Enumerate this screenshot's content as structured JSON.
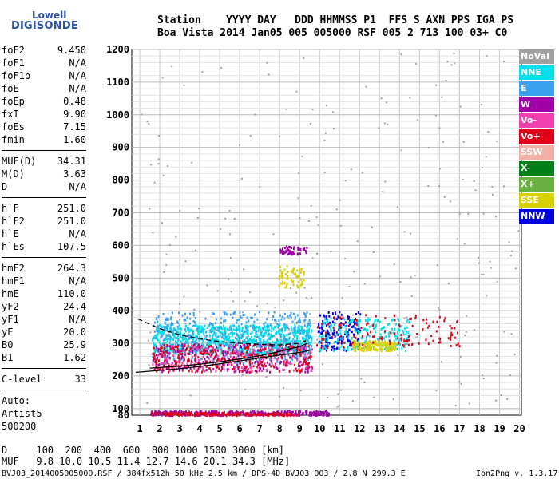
{
  "logo": {
    "top": "Lowell",
    "bottom": "DIGISONDE"
  },
  "header": {
    "line1": "Station    YYYY DAY   DDD HHMMSS P1  FFS S AXN PPS IGA PS",
    "line2": "Boa Vista 2014 Jan05 005 005000 RSF 005 2 713 100 03+ C0"
  },
  "params": {
    "group1": [
      {
        "name": "foF2",
        "value": "9.450"
      },
      {
        "name": "foF1",
        "value": "N/A"
      },
      {
        "name": "foF1p",
        "value": "N/A"
      },
      {
        "name": "foE",
        "value": "N/A"
      },
      {
        "name": "foEp",
        "value": "0.48"
      },
      {
        "name": "fxI",
        "value": "9.90"
      },
      {
        "name": "foEs",
        "value": "7.15"
      },
      {
        "name": "fmin",
        "value": "1.60"
      }
    ],
    "group2": [
      {
        "name": "MUF(D)",
        "value": "34.31"
      },
      {
        "name": "M(D)",
        "value": "3.63"
      },
      {
        "name": "D",
        "value": "N/A"
      }
    ],
    "group3": [
      {
        "name": "h`F",
        "value": "251.0"
      },
      {
        "name": "h`F2",
        "value": "251.0"
      },
      {
        "name": "h`E",
        "value": "N/A"
      },
      {
        "name": "h`Es",
        "value": "107.5"
      }
    ],
    "group4": [
      {
        "name": "hmF2",
        "value": "264.3"
      },
      {
        "name": "hmF1",
        "value": "N/A"
      },
      {
        "name": "hmE",
        "value": "110.0"
      },
      {
        "name": "yF2",
        "value": "24.4"
      },
      {
        "name": "yF1",
        "value": "N/A"
      },
      {
        "name": "yE",
        "value": "20.0"
      },
      {
        "name": "B0",
        "value": "25.9"
      },
      {
        "name": "B1",
        "value": "1.62"
      }
    ],
    "group5": [
      {
        "name": "C-level",
        "value": "33"
      }
    ],
    "auto": [
      "Auto:",
      "Artist5",
      "500200"
    ]
  },
  "legend": [
    {
      "label": "NoVal",
      "color": "#a0a0a0"
    },
    {
      "label": "NNE",
      "color": "#00e0e8"
    },
    {
      "label": "E",
      "color": "#3aa0f0"
    },
    {
      "label": "W",
      "color": "#a000a8"
    },
    {
      "label": "Vo-",
      "color": "#f040b0"
    },
    {
      "label": "Vo+",
      "color": "#e00018"
    },
    {
      "label": "SSW",
      "color": "#f0b0a8"
    },
    {
      "label": "X-",
      "color": "#008018"
    },
    {
      "label": "X+",
      "color": "#68b040"
    },
    {
      "label": "SSE",
      "color": "#d8d000"
    },
    {
      "label": "NNW",
      "color": "#0000e0"
    }
  ],
  "footer": {
    "d_line": "D     100  200  400  600  800 1000 1500 3000 [km]",
    "muf_line": "MUF   9.8 10.0 10.5 11.4 12.7 14.6 20.1 34.3 [MHz]",
    "file_line": "BVJ03_2014005005000.RSF / 384fx512h 50 kHz 2.5 km / DPS-4D BVJ03 003 / 2.8 N 299.3 E",
    "version": "Ion2Png v. 1.3.17"
  },
  "chart_data": {
    "type": "scatter",
    "x_ticks": [
      1,
      2,
      3,
      4,
      5,
      6,
      7,
      8,
      9,
      10,
      11,
      12,
      13,
      14,
      15,
      16,
      17,
      18,
      19,
      20
    ],
    "y_ticks": [
      80,
      100,
      200,
      300,
      400,
      500,
      600,
      700,
      800,
      900,
      1000,
      1100,
      1200
    ],
    "xlim": [
      0.6,
      20.1
    ],
    "ylim": [
      80,
      1200
    ],
    "grid": true,
    "clusters": [
      {
        "series": "NNE",
        "color": "#00e0e8",
        "fmin": 1.6,
        "fmax": 9.6,
        "hmin": 270,
        "hmax": 360,
        "count": 900
      },
      {
        "series": "E",
        "color": "#3aa0f0",
        "fmin": 1.6,
        "fmax": 9.6,
        "hmin": 240,
        "hmax": 400,
        "count": 420
      },
      {
        "series": "W",
        "color": "#a000a8",
        "fmin": 1.6,
        "fmax": 9.6,
        "hmin": 215,
        "hmax": 300,
        "count": 260
      },
      {
        "series": "Vo-",
        "color": "#f040b0",
        "fmin": 1.6,
        "fmax": 9.6,
        "hmin": 215,
        "hmax": 300,
        "count": 220
      },
      {
        "series": "Vo+",
        "color": "#e00018",
        "fmin": 1.6,
        "fmax": 9.6,
        "hmin": 215,
        "hmax": 300,
        "count": 260
      },
      {
        "series": "NNW",
        "color": "#0000e0",
        "fmin": 9.9,
        "fmax": 12.0,
        "hmin": 280,
        "hmax": 400,
        "count": 160
      },
      {
        "series": "NNE",
        "color": "#00e0e8",
        "fmin": 9.9,
        "fmax": 14.5,
        "hmin": 280,
        "hmax": 380,
        "count": 220
      },
      {
        "series": "SSE",
        "color": "#d8d000",
        "fmin": 11.6,
        "fmax": 13.8,
        "hmin": 280,
        "hmax": 310,
        "count": 160
      },
      {
        "series": "Vo+",
        "color": "#e00018",
        "fmin": 9.8,
        "fmax": 17.0,
        "hmin": 290,
        "hmax": 390,
        "count": 120
      },
      {
        "series": "W",
        "color": "#a000a8",
        "fmin": 1.5,
        "fmax": 10.5,
        "hmin": 82,
        "hmax": 95,
        "count": 320
      },
      {
        "series": "Vo+",
        "color": "#e00018",
        "fmin": 1.5,
        "fmax": 9.0,
        "hmin": 82,
        "hmax": 90,
        "count": 160
      },
      {
        "series": "SSE",
        "color": "#d8d000",
        "fmin": 7.9,
        "fmax": 9.2,
        "hmin": 470,
        "hmax": 540,
        "count": 60
      },
      {
        "series": "W",
        "color": "#a000a8",
        "fmin": 8.0,
        "fmax": 9.4,
        "hmin": 575,
        "hmax": 600,
        "count": 60
      },
      {
        "series": "NoVal",
        "color": "#a0a0a0",
        "fmin": 1.0,
        "fmax": 20.0,
        "hmin": 100,
        "hmax": 1200,
        "count": 260
      }
    ],
    "trace_lower": [
      [
        0.8,
        211
      ],
      [
        2,
        217
      ],
      [
        3,
        222
      ],
      [
        4,
        229
      ],
      [
        5,
        237
      ],
      [
        6,
        246
      ],
      [
        7,
        255
      ],
      [
        8,
        264
      ],
      [
        9,
        272
      ],
      [
        9.5,
        278
      ]
    ],
    "trace_upper": [
      [
        1.5,
        224
      ],
      [
        3,
        230
      ],
      [
        4,
        236
      ],
      [
        5,
        243
      ],
      [
        6,
        252
      ],
      [
        7,
        262
      ],
      [
        8,
        275
      ],
      [
        9,
        290
      ],
      [
        9.4,
        300
      ]
    ],
    "trace_dashed": [
      [
        0.9,
        375
      ],
      [
        2,
        345
      ],
      [
        3,
        326
      ],
      [
        4,
        314
      ],
      [
        5,
        305
      ],
      [
        6,
        300
      ],
      [
        7,
        297
      ],
      [
        8,
        295
      ],
      [
        9,
        300
      ],
      [
        9.4,
        310
      ]
    ]
  }
}
